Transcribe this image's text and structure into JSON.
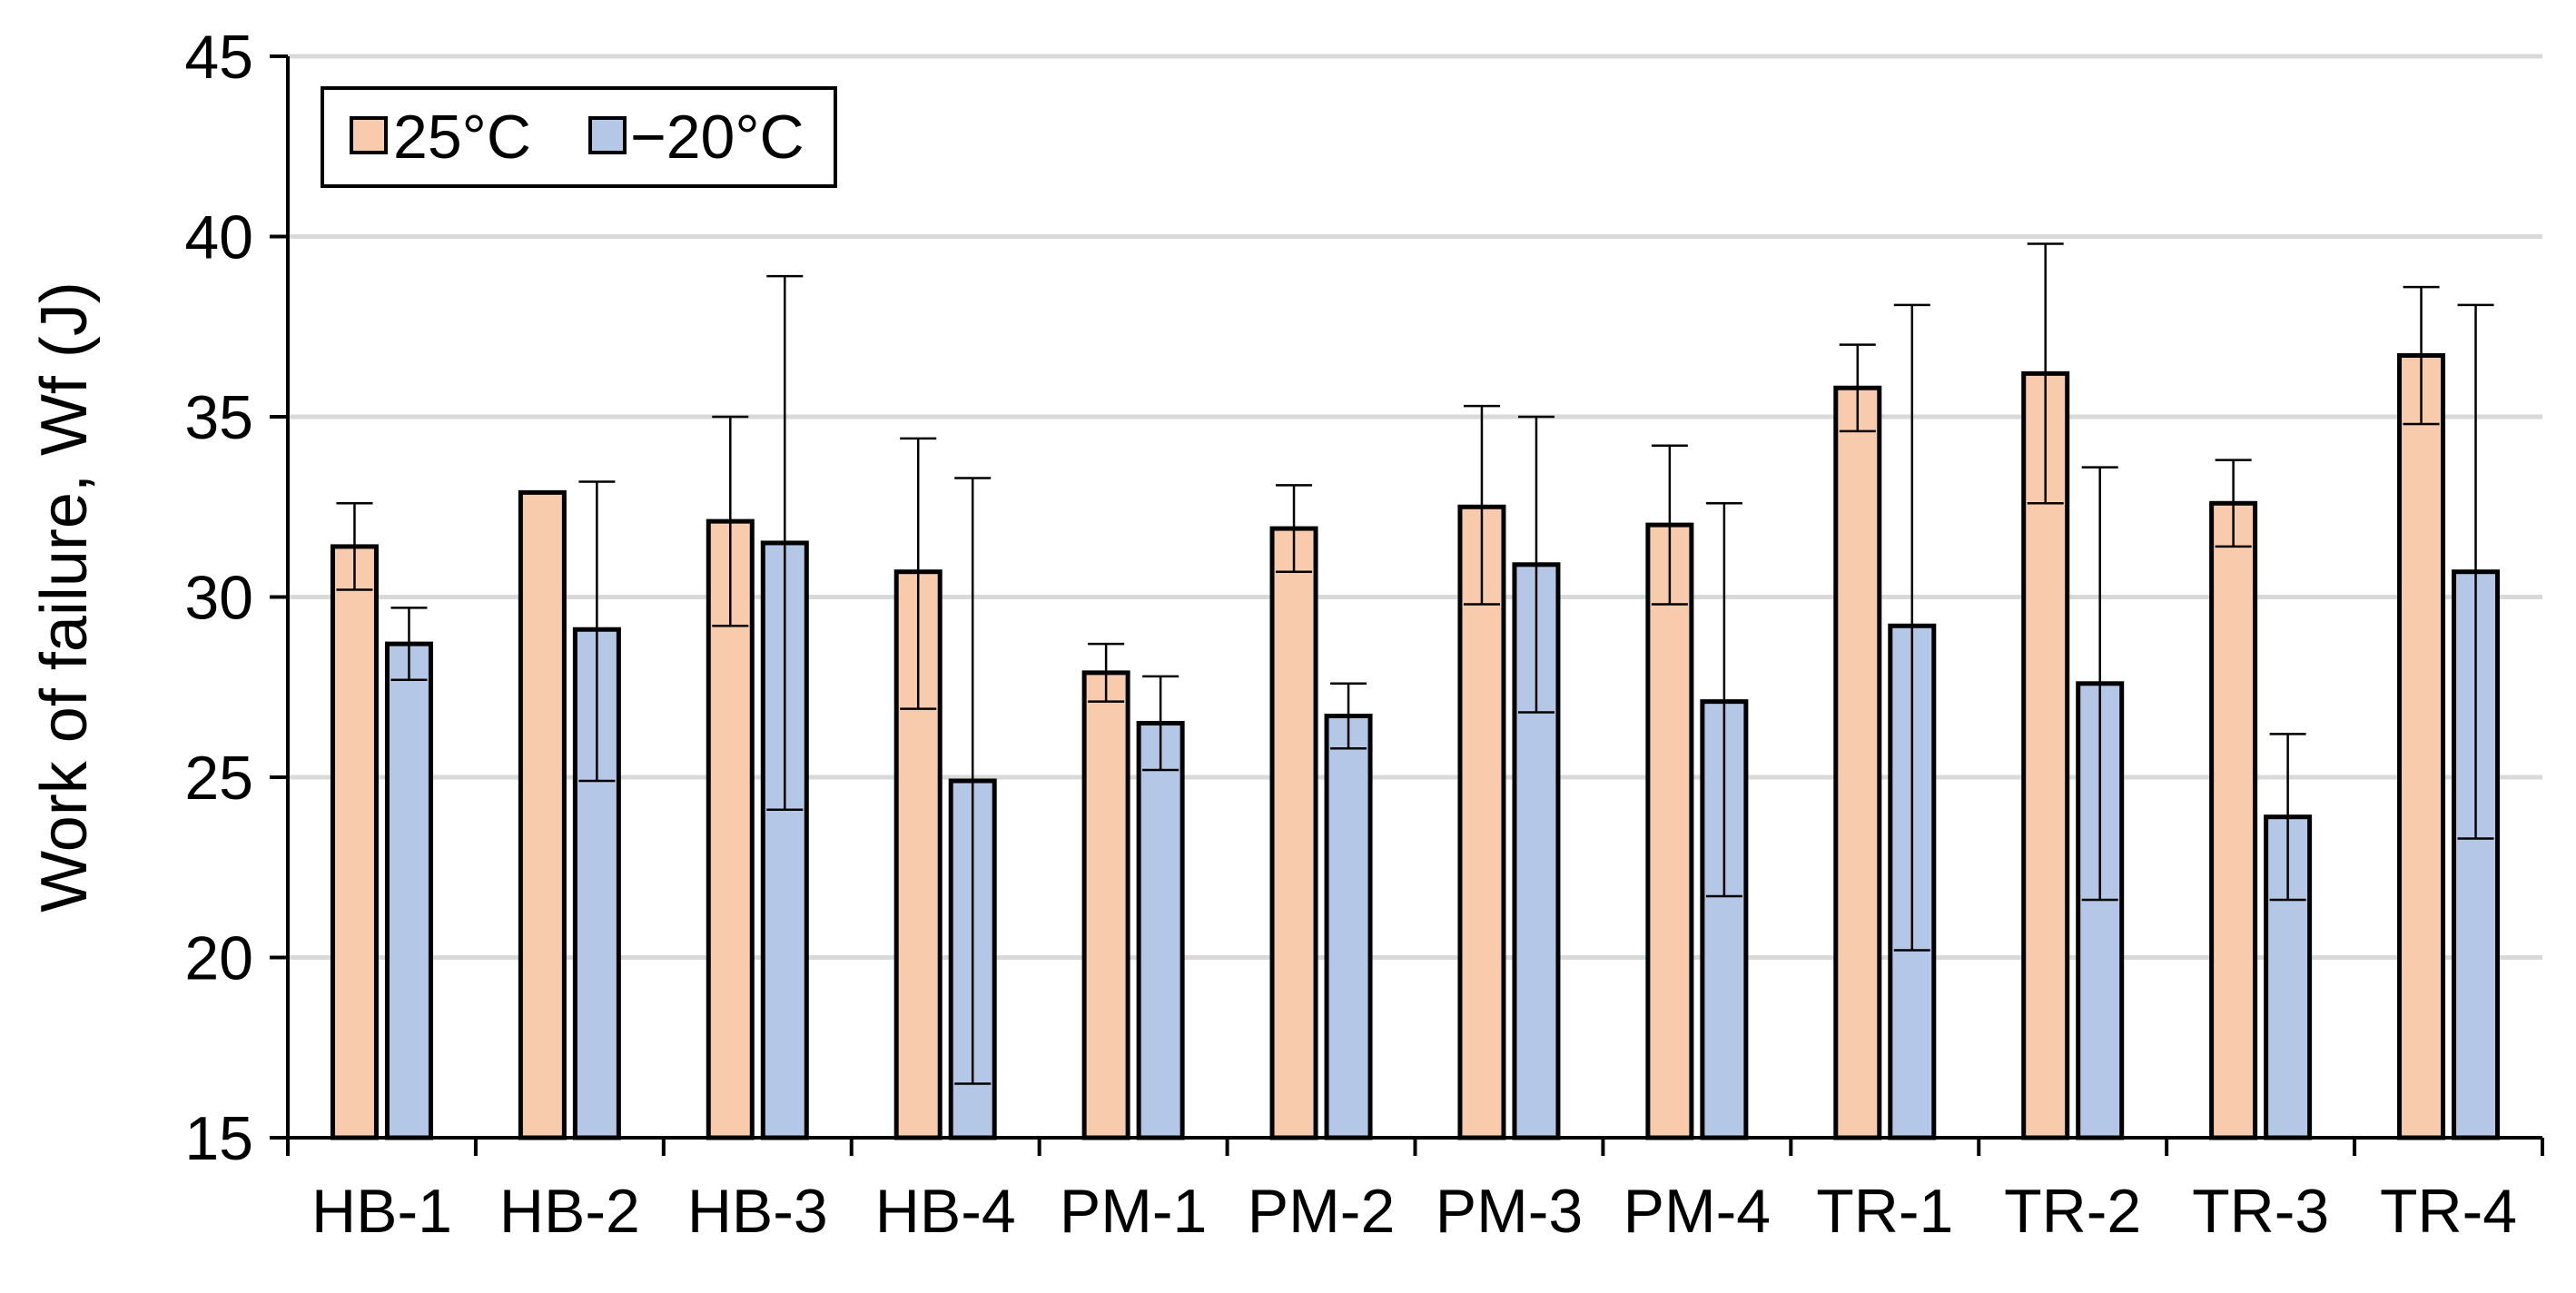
{
  "chart_data": {
    "type": "bar",
    "title": "",
    "xlabel": "",
    "ylabel": "Work of failure, Wf (J)",
    "ylim": [
      15,
      45
    ],
    "yticks": [
      15,
      20,
      25,
      30,
      35,
      40,
      45
    ],
    "grid": true,
    "legend_position": "top-left",
    "categories": [
      "HB-1",
      "HB-2",
      "HB-3",
      "HB-4",
      "PM-1",
      "PM-2",
      "PM-3",
      "PM-4",
      "TR-1",
      "TR-2",
      "TR-3",
      "TR-4"
    ],
    "series": [
      {
        "name": "25°C",
        "color": "#F8CBAD",
        "values": [
          31.4,
          32.9,
          32.1,
          30.7,
          27.9,
          31.9,
          32.5,
          32.0,
          35.8,
          36.2,
          32.6,
          36.7
        ],
        "error_high": [
          32.6,
          32.9,
          35.0,
          34.4,
          28.7,
          33.1,
          35.3,
          34.2,
          37.0,
          39.8,
          33.8,
          38.6
        ],
        "error_low": [
          30.2,
          32.9,
          29.2,
          26.9,
          27.1,
          30.7,
          29.8,
          29.8,
          34.6,
          32.6,
          31.4,
          34.8
        ]
      },
      {
        "name": "−20°C",
        "color": "#B4C7E7",
        "values": [
          28.7,
          29.1,
          31.5,
          24.9,
          26.5,
          26.7,
          30.9,
          27.1,
          29.2,
          27.6,
          23.9,
          30.7
        ],
        "error_high": [
          29.7,
          33.2,
          38.9,
          33.3,
          27.8,
          27.6,
          35.0,
          32.6,
          38.1,
          33.6,
          26.2,
          38.1
        ],
        "error_low": [
          27.7,
          24.9,
          24.1,
          16.5,
          25.2,
          25.8,
          26.8,
          21.7,
          20.2,
          21.6,
          21.6,
          23.3
        ]
      }
    ]
  }
}
